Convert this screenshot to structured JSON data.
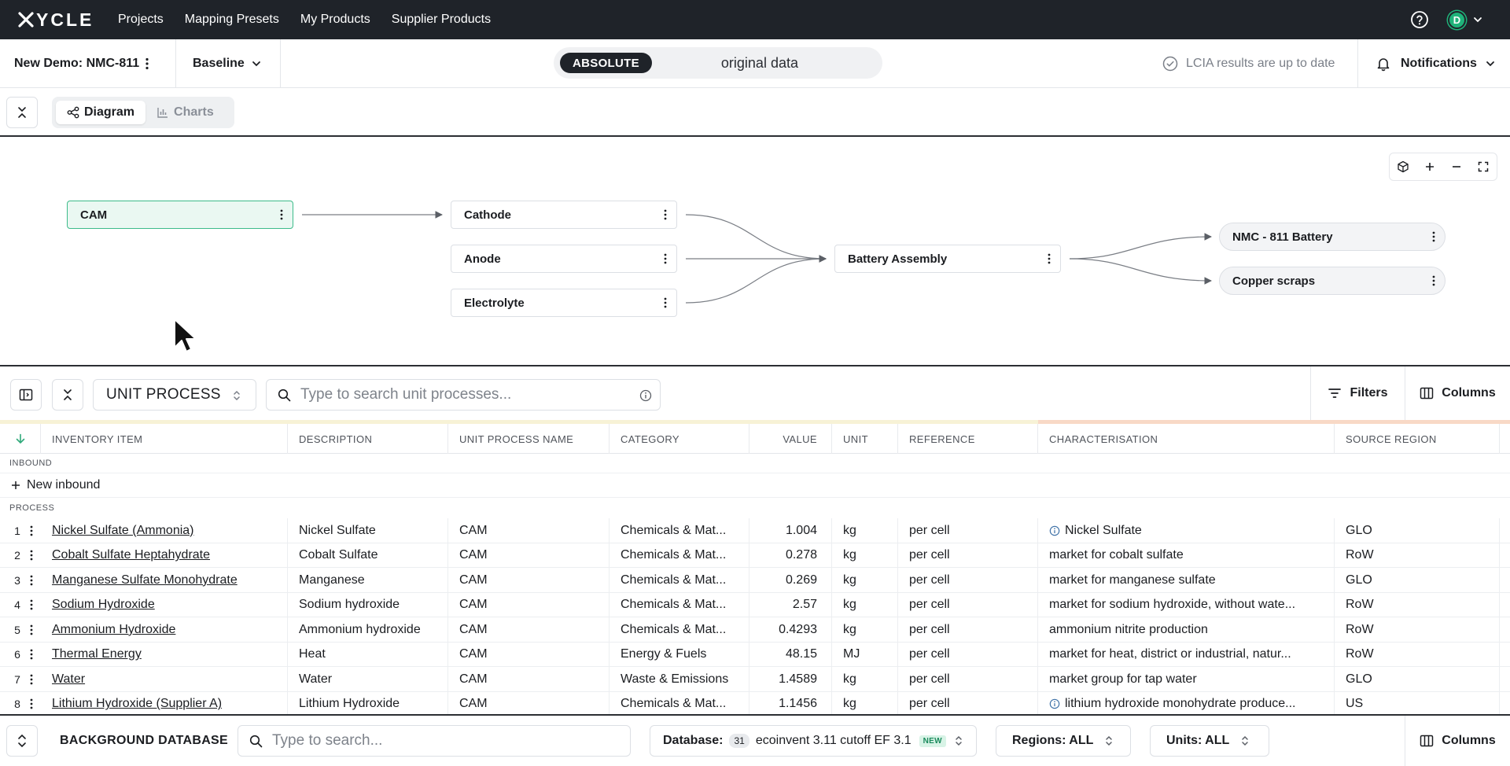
{
  "nav": {
    "logo": "YCLE",
    "links": [
      "Projects",
      "Mapping Presets",
      "My Products",
      "Supplier Products"
    ],
    "avatar_initial": "D"
  },
  "project": {
    "name": "New Demo: NMC-811",
    "scenario": "Baseline",
    "mode_active": "ABSOLUTE",
    "mode_other": "original data",
    "lcia_status": "LCIA results are up to date",
    "notifications_label": "Notifications"
  },
  "view_tabs": {
    "diagram": "Diagram",
    "charts": "Charts"
  },
  "diagram": {
    "nodes": {
      "cam": "CAM",
      "cathode": "Cathode",
      "anode": "Anode",
      "electrolyte": "Electrolyte",
      "battery_assembly": "Battery Assembly",
      "nmc_battery": "NMC - 811 Battery",
      "copper_scraps": "Copper scraps"
    }
  },
  "toolbar": {
    "process_type": "UNIT PROCESS",
    "search_placeholder": "Type to search unit processes...",
    "filters_label": "Filters",
    "columns_label": "Columns"
  },
  "table": {
    "headers": {
      "inventory_item": "INVENTORY ITEM",
      "description": "DESCRIPTION",
      "unit_process_name": "UNIT PROCESS NAME",
      "category": "CATEGORY",
      "value": "VALUE",
      "unit": "UNIT",
      "reference": "REFERENCE",
      "characterisation": "CHARACTERISATION",
      "source_region": "SOURCE REGION"
    },
    "group_inbound": "INBOUND",
    "new_inbound": "New inbound",
    "group_process": "PROCESS",
    "rows": [
      {
        "n": "1",
        "item": "Nickel Sulfate (Ammonia)",
        "desc": "Nickel Sulfate",
        "upn": "CAM",
        "cat": "Chemicals & Mat...",
        "value": "1.004",
        "unit": "kg",
        "ref": "per cell",
        "char": "Nickel Sulfate",
        "info": true,
        "region": "GLO"
      },
      {
        "n": "2",
        "item": "Cobalt Sulfate Heptahydrate",
        "desc": "Cobalt Sulfate",
        "upn": "CAM",
        "cat": "Chemicals & Mat...",
        "value": "0.278",
        "unit": "kg",
        "ref": "per cell",
        "char": "market for cobalt sulfate",
        "info": false,
        "region": "RoW"
      },
      {
        "n": "3",
        "item": "Manganese Sulfate Monohydrate",
        "desc": "Manganese",
        "upn": "CAM",
        "cat": "Chemicals & Mat...",
        "value": "0.269",
        "unit": "kg",
        "ref": "per cell",
        "char": "market for manganese sulfate",
        "info": false,
        "region": "GLO"
      },
      {
        "n": "4",
        "item": "Sodium Hydroxide",
        "desc": "Sodium hydroxide",
        "upn": "CAM",
        "cat": "Chemicals & Mat...",
        "value": "2.57",
        "unit": "kg",
        "ref": "per cell",
        "char": "market for sodium hydroxide, without wate...",
        "info": false,
        "region": "RoW"
      },
      {
        "n": "5",
        "item": "Ammonium Hydroxide",
        "desc": "Ammonium hydroxide",
        "upn": "CAM",
        "cat": "Chemicals & Mat...",
        "value": "0.4293",
        "unit": "kg",
        "ref": "per cell",
        "char": "ammonium nitrite production",
        "info": false,
        "region": "RoW"
      },
      {
        "n": "6",
        "item": "Thermal Energy",
        "desc": "Heat",
        "upn": "CAM",
        "cat": "Energy & Fuels",
        "value": "48.15",
        "unit": "MJ",
        "ref": "per cell",
        "char": "market for heat, district or industrial, natur...",
        "info": false,
        "region": "RoW"
      },
      {
        "n": "7",
        "item": "Water",
        "desc": "Water",
        "upn": "CAM",
        "cat": "Waste & Emissions",
        "value": "1.4589",
        "unit": "kg",
        "ref": "per cell",
        "char": "market group for tap water",
        "info": false,
        "region": "GLO"
      },
      {
        "n": "8",
        "item": "Lithium Hydroxide (Supplier A)",
        "desc": "Lithium Hydroxide",
        "upn": "CAM",
        "cat": "Chemicals & Mat...",
        "value": "1.1456",
        "unit": "kg",
        "ref": "per cell",
        "char": "lithium hydroxide monohydrate produce...",
        "info": true,
        "region": "US"
      }
    ]
  },
  "background_db": {
    "title": "BACKGROUND DATABASE",
    "search_placeholder": "Type to search...",
    "database_label": "Database:",
    "database_count": "31",
    "database_name": "ecoinvent 3.11 cutoff EF 3.1",
    "new_badge": "NEW",
    "regions": "Regions: ALL",
    "units": "Units: ALL",
    "columns_label": "Columns"
  },
  "colors": {
    "nav_bg": "#1f2329",
    "accent_green": "#3dbb8a",
    "strip_inbound": "#f7f2d6",
    "strip_char": "#f8d9c6"
  }
}
